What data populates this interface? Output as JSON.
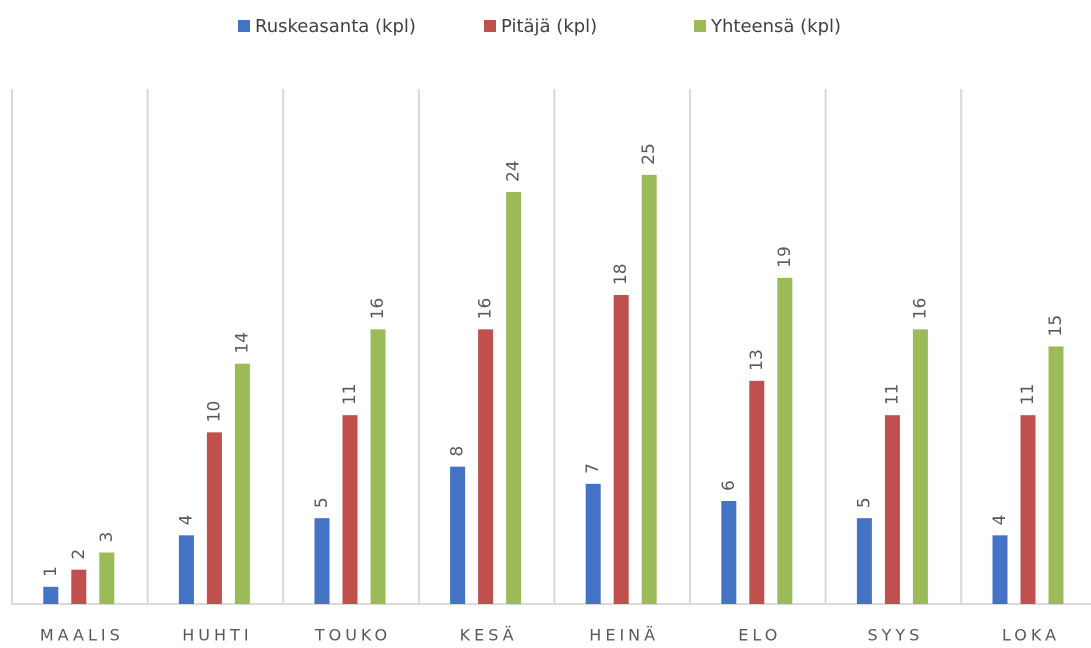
{
  "chart_data": {
    "type": "bar",
    "categories": [
      "MAALIS",
      "HUHTI",
      "TOUKO",
      "KESÄ",
      "HEINÄ",
      "ELO",
      "SYYS",
      "LOKA"
    ],
    "series": [
      {
        "name": "Ruskeasanta (kpl)",
        "color": "#4472c4",
        "values": [
          1,
          4,
          5,
          8,
          7,
          6,
          5,
          4
        ]
      },
      {
        "name": "Pitäjä (kpl)",
        "color": "#c0504d",
        "values": [
          2,
          10,
          11,
          16,
          18,
          13,
          11,
          11
        ]
      },
      {
        "name": "Yhteensä (kpl)",
        "color": "#9bbb59",
        "values": [
          3,
          14,
          16,
          24,
          25,
          19,
          16,
          15
        ]
      }
    ],
    "ylim": [
      0,
      30
    ],
    "legend": "top"
  }
}
